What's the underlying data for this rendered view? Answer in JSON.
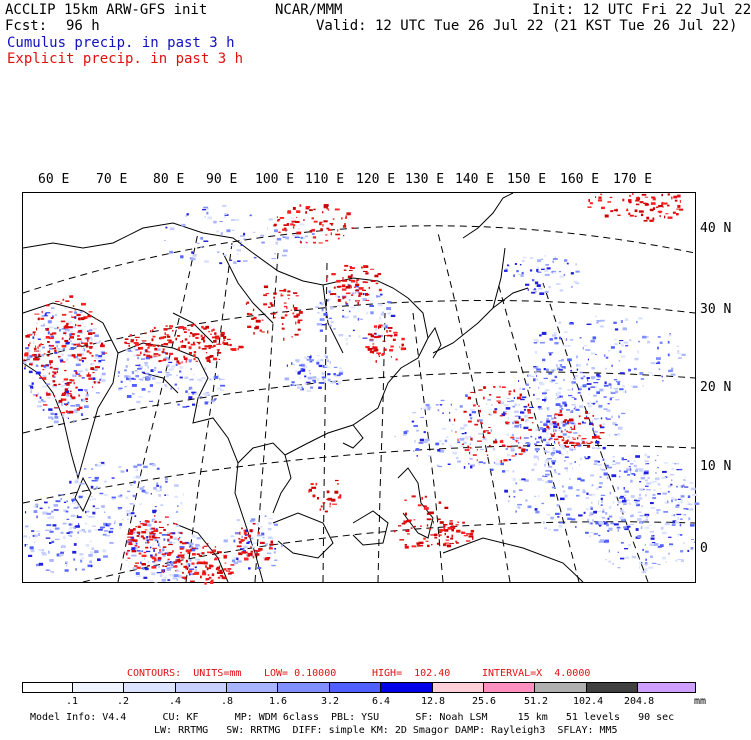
{
  "header": {
    "title_left": "ACCLIP 15km ARW-GFS init",
    "title_center": "NCAR/MMM",
    "init": "Init: 12 UTC Fri 22 Jul 22",
    "fcst_label": "Fcst:",
    "fcst_value": "96 h",
    "valid": "Valid: 12 UTC Tue 26 Jul 22 (21 KST Tue 26 Jul 22)",
    "legend_cumulus": "Cumulus precip. in past 3 h",
    "legend_explicit": "Explicit precip. in past 3 h"
  },
  "map": {
    "lon_labels": [
      "60 E",
      "70 E",
      "80 E",
      "90 E",
      "100 E",
      "110 E",
      "120 E",
      "130 E",
      "140 E",
      "150 E",
      "160 E",
      "170 E"
    ],
    "lat_labels": [
      "40 N",
      "30 N",
      "20 N",
      "10 N",
      "0"
    ],
    "colors": {
      "cumulus": "#2020e0",
      "explicit": "#e01010",
      "coast": "#000000"
    }
  },
  "contours": {
    "units": "CONTOURS:  UNITS=mm",
    "low": "LOW= 0.10000",
    "high": "HIGH=  102.40",
    "interval": "INTERVAL=X  4.0000"
  },
  "colorbar": {
    "ticks": [
      ".1",
      ".2",
      ".4",
      ".8",
      "1.6",
      "3.2",
      "6.4",
      "12.8",
      "25.6",
      "51.2",
      "102.4",
      "204.8"
    ],
    "unit": "mm",
    "colors": [
      "#ffffff",
      "#f0f4ff",
      "#dce4ff",
      "#c8d0ff",
      "#a8b4ff",
      "#8090ff",
      "#5060ff",
      "#0000e8",
      "#ffd0d8",
      "#ff90c0",
      "#b0b0b0",
      "#404040",
      "#d0a0ff"
    ]
  },
  "footer": {
    "line1": "Model Info: V4.4      CU: KF      MP: WDM 6class  PBL: YSU      SF: Noah LSM     15 km   51 levels   90 sec",
    "line2": "LW: RRTMG   SW: RRTMG  DIFF: simple KM: 2D Smagor DAMP: Rayleigh3  SFLAY: MM5"
  }
}
